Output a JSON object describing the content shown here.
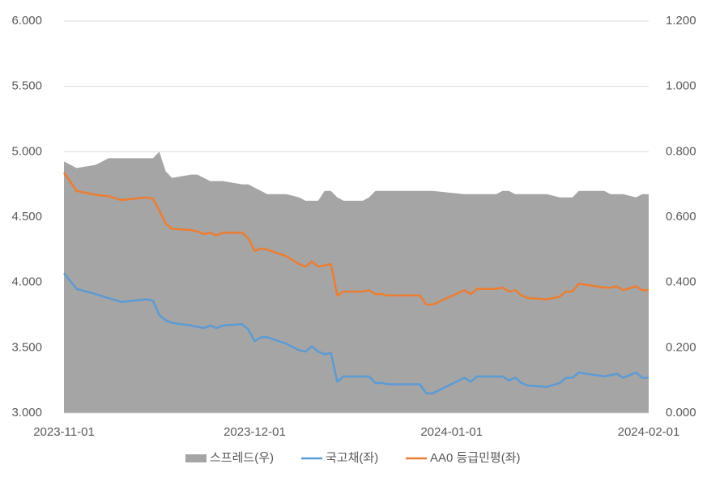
{
  "chart_data": {
    "type": "line",
    "x": [
      "2023-11-01",
      "2023-11-03",
      "2023-11-06",
      "2023-11-08",
      "2023-11-10",
      "2023-11-12",
      "2023-11-14",
      "2023-11-15",
      "2023-11-16",
      "2023-11-17",
      "2023-11-18",
      "2023-11-21",
      "2023-11-22",
      "2023-11-23",
      "2023-11-24",
      "2023-11-25",
      "2023-11-26",
      "2023-11-29",
      "2023-11-30",
      "2023-12-01",
      "2023-12-02",
      "2023-12-03",
      "2023-12-06",
      "2023-12-08",
      "2023-12-09",
      "2023-12-10",
      "2023-12-11",
      "2023-12-12",
      "2023-12-13",
      "2023-12-14",
      "2023-12-15",
      "2023-12-18",
      "2023-12-19",
      "2023-12-20",
      "2023-12-21",
      "2023-12-22",
      "2023-12-27",
      "2023-12-28",
      "2023-12-29",
      "2024-01-03",
      "2024-01-04",
      "2024-01-05",
      "2024-01-08",
      "2024-01-09",
      "2024-01-10",
      "2024-01-11",
      "2024-01-12",
      "2024-01-13",
      "2024-01-16",
      "2024-01-18",
      "2024-01-19",
      "2024-01-20",
      "2024-01-21",
      "2024-01-25",
      "2024-01-26",
      "2024-01-27",
      "2024-01-28",
      "2024-01-30",
      "2024-01-31",
      "2024-02-01"
    ],
    "series": [
      {
        "name": "스프레드(우)",
        "type": "area",
        "axis": "y2",
        "color": "#a5a5a5",
        "values": [
          0.77,
          0.75,
          0.76,
          0.78,
          0.78,
          0.78,
          0.78,
          0.78,
          0.8,
          0.74,
          0.72,
          0.73,
          0.73,
          0.72,
          0.71,
          0.71,
          0.71,
          0.7,
          0.7,
          0.69,
          0.68,
          0.67,
          0.67,
          0.66,
          0.65,
          0.65,
          0.65,
          0.68,
          0.68,
          0.66,
          0.65,
          0.65,
          0.66,
          0.68,
          0.68,
          0.68,
          0.68,
          0.68,
          0.68,
          0.67,
          0.67,
          0.67,
          0.67,
          0.68,
          0.68,
          0.67,
          0.67,
          0.67,
          0.67,
          0.66,
          0.66,
          0.66,
          0.68,
          0.68,
          0.67,
          0.67,
          0.67,
          0.66,
          0.67,
          0.67
        ]
      },
      {
        "name": "국고채(좌)",
        "type": "line",
        "color": "#5b9bd5",
        "values": [
          4.07,
          3.95,
          3.91,
          3.88,
          3.85,
          3.86,
          3.87,
          3.86,
          3.75,
          3.71,
          3.69,
          3.67,
          3.66,
          3.65,
          3.67,
          3.65,
          3.67,
          3.68,
          3.64,
          3.55,
          3.58,
          3.58,
          3.53,
          3.48,
          3.47,
          3.51,
          3.47,
          3.45,
          3.46,
          3.24,
          3.28,
          3.28,
          3.28,
          3.23,
          3.23,
          3.22,
          3.22,
          3.15,
          3.15,
          3.27,
          3.24,
          3.28,
          3.28,
          3.28,
          3.25,
          3.27,
          3.23,
          3.21,
          3.2,
          3.23,
          3.27,
          3.27,
          3.31,
          3.28,
          3.29,
          3.3,
          3.27,
          3.31,
          3.27,
          3.27
        ]
      },
      {
        "name": "AA0 등급민평(좌)",
        "type": "line",
        "color": "#ed7d31",
        "values": [
          4.84,
          4.7,
          4.67,
          4.66,
          4.63,
          4.64,
          4.65,
          4.64,
          4.55,
          4.45,
          4.41,
          4.4,
          4.39,
          4.37,
          4.38,
          4.36,
          4.38,
          4.38,
          4.34,
          4.24,
          4.26,
          4.25,
          4.2,
          4.14,
          4.12,
          4.16,
          4.12,
          4.13,
          4.14,
          3.9,
          3.93,
          3.93,
          3.94,
          3.91,
          3.91,
          3.9,
          3.9,
          3.83,
          3.83,
          3.94,
          3.91,
          3.95,
          3.95,
          3.96,
          3.93,
          3.94,
          3.9,
          3.88,
          3.87,
          3.89,
          3.93,
          3.93,
          3.99,
          3.96,
          3.96,
          3.97,
          3.94,
          3.97,
          3.94,
          3.94
        ]
      }
    ],
    "xlim": [
      "2023-11-01",
      "2024-02-01"
    ],
    "xticks": [
      "2023-11-01",
      "2023-12-01",
      "2024-01-01",
      "2024-02-01"
    ],
    "ylim": [
      3,
      6
    ],
    "yticks": [
      {
        "value": 3,
        "label": "3.000"
      },
      {
        "value": 3.5,
        "label": "3.500"
      },
      {
        "value": 4,
        "label": "4.000"
      },
      {
        "value": 4.5,
        "label": "4.500"
      },
      {
        "value": 5,
        "label": "5.000"
      },
      {
        "value": 5.5,
        "label": "5.500"
      },
      {
        "value": 6,
        "label": "6.000"
      }
    ],
    "y2lim": [
      0,
      1.2
    ],
    "y2ticks": [
      {
        "value": 0,
        "label": "0.000"
      },
      {
        "value": 0.2,
        "label": "0.200"
      },
      {
        "value": 0.4,
        "label": "0.400"
      },
      {
        "value": 0.6,
        "label": "0.600"
      },
      {
        "value": 0.8,
        "label": "0.800"
      },
      {
        "value": 1,
        "label": "1.000"
      },
      {
        "value": 1.2,
        "label": "1.200"
      }
    ],
    "grid": true,
    "legend": "bottom"
  }
}
